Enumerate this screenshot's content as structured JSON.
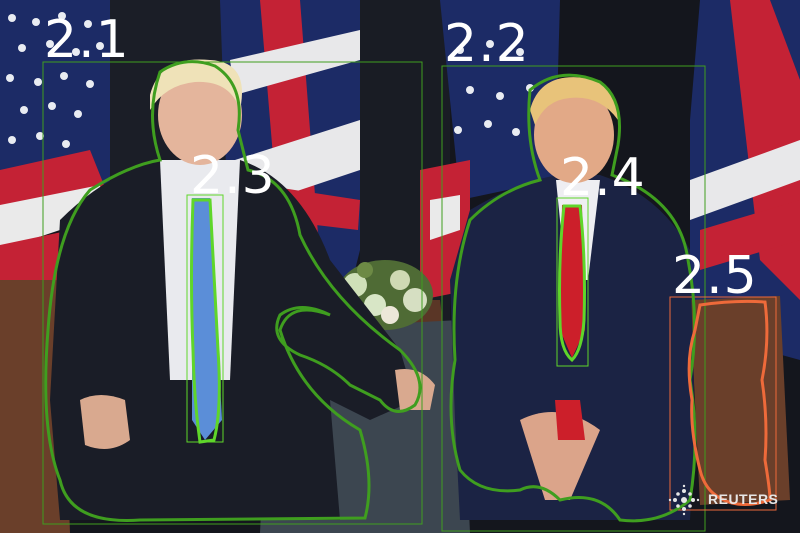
{
  "annotations": [
    {
      "id": "2.1",
      "label": "2.1",
      "color": "#3f9e1f"
    },
    {
      "id": "2.2",
      "label": "2.2",
      "color": "#3f9e1f"
    },
    {
      "id": "2.3",
      "label": "2.3",
      "color": "#5fd62a"
    },
    {
      "id": "2.4",
      "label": "2.4",
      "color": "#5fd62a"
    },
    {
      "id": "2.5",
      "label": "2.5",
      "color": "#ee6a3a"
    }
  ],
  "watermark": {
    "text": "REUTERS",
    "icon": "reuters-dot-logo"
  },
  "colors": {
    "backdrop": "#14161d",
    "flag_blue": "#1c2b66",
    "flag_red": "#c42235",
    "suit_dark": "#1a1d27",
    "suit_navy": "#1b2344",
    "tie_blue": "#5b8ed8",
    "tie_red": "#cc1f2a",
    "chair_brown": "#6a3f2a",
    "table_cloth": "#3c4650"
  }
}
